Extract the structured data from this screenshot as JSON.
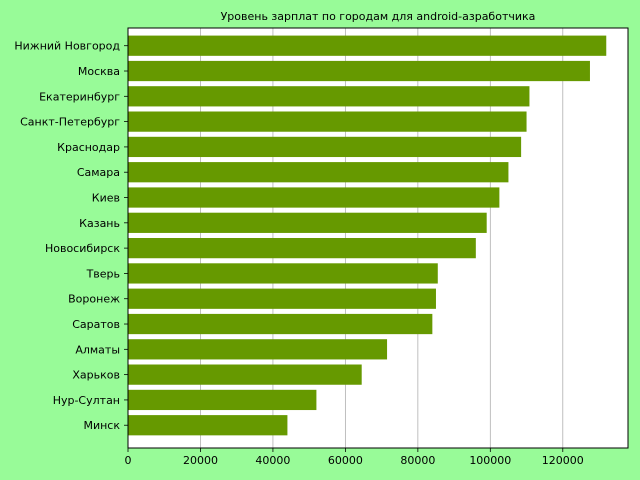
{
  "colors": {
    "figure_background": "#98fb98",
    "plot_background": "#ffffff",
    "bar": "#669900",
    "grid": "#b0b0b0",
    "axis": "#000000"
  },
  "chart_data": {
    "type": "bar",
    "orientation": "horizontal",
    "title": "Уровень зарплат по городам для android-азработчика",
    "xlabel": "",
    "ylabel": "",
    "categories": [
      "Нижний Новгород",
      "Москва",
      "Екатеринбург",
      "Санкт-Петербург",
      "Краснодар",
      "Самара",
      "Киев",
      "Казань",
      "Новосибирск",
      "Тверь",
      "Воронеж",
      "Саратов",
      "Алматы",
      "Харьков",
      "Нур-Султан",
      "Минск"
    ],
    "values": [
      132000,
      127500,
      110800,
      110000,
      108500,
      105000,
      102500,
      99000,
      96000,
      85500,
      85000,
      84000,
      71500,
      64500,
      52000,
      44000
    ],
    "xlim": [
      0,
      138000
    ],
    "xticks": [
      0,
      20000,
      40000,
      60000,
      80000,
      100000,
      120000
    ],
    "xtick_labels": [
      "0",
      "20000",
      "40000",
      "60000",
      "80000",
      "100000",
      "120000"
    ],
    "grid": "vertical",
    "legend": "none"
  }
}
